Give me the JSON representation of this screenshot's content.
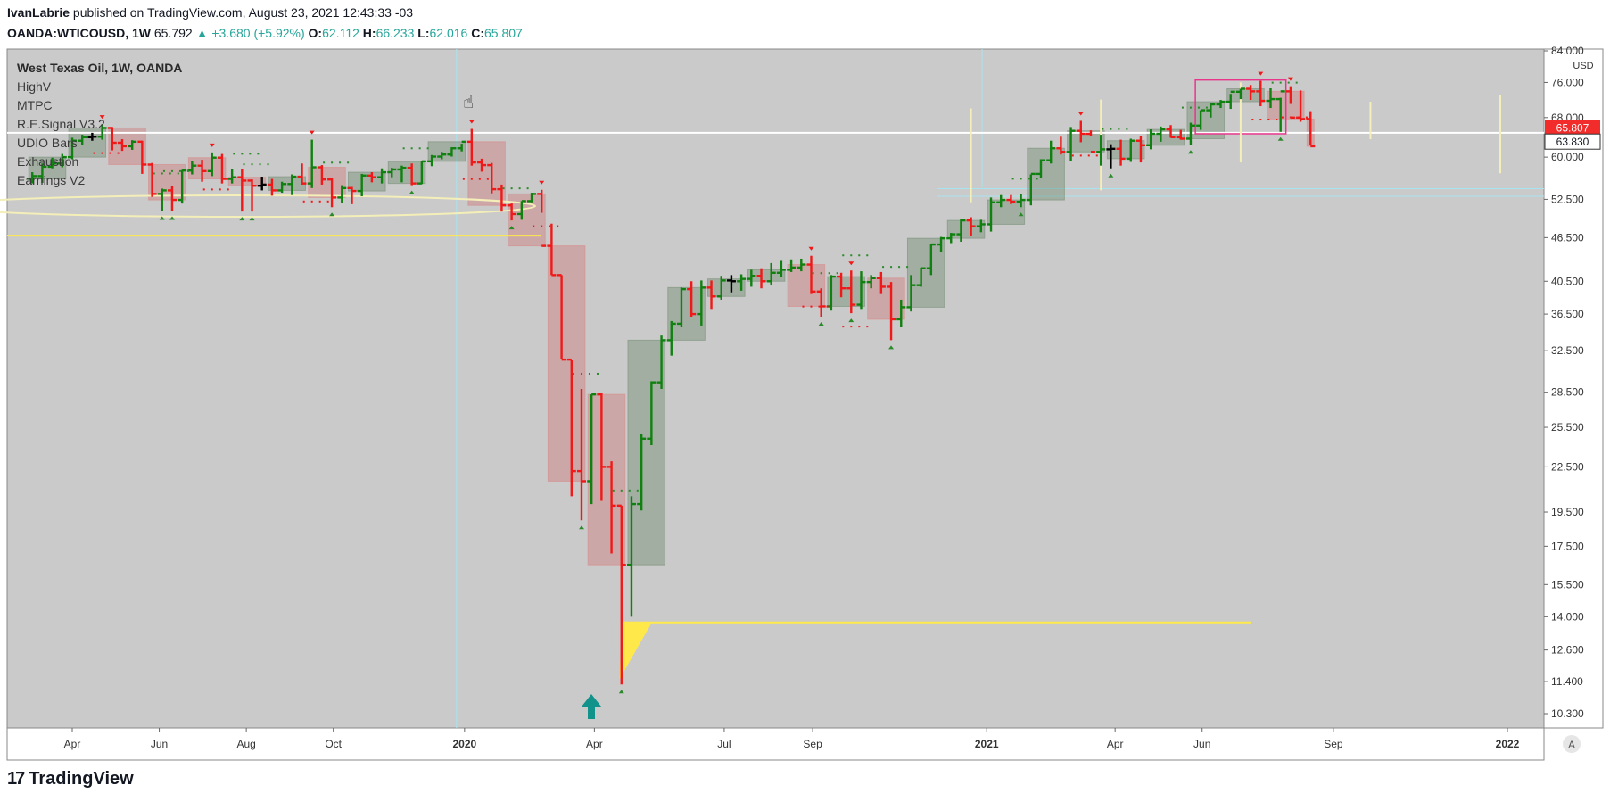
{
  "header": {
    "author": "IvanLabrie",
    "published_text": "published on TradingView.com, August 23, 2021 12:43:33 -03",
    "symbol": "OANDA:WTICOUSD, 1W",
    "last": "65.792",
    "change": "▲ +3.680 (+5.92%)",
    "o_label": "O:",
    "o": "62.112",
    "h_label": "H:",
    "h": "66.233",
    "l_label": "L:",
    "l": "62.016",
    "c_label": "C:",
    "c": "65.807"
  },
  "legend": {
    "title": "West Texas Oil, 1W, OANDA",
    "indicators": [
      "HighV",
      "MTPC",
      "R.E.Signal V3.2",
      "UDIO Bars",
      "Exhaustion",
      "Earnings V2"
    ]
  },
  "footer": {
    "brand": "TradingView",
    "logo_mark": "17"
  },
  "colors": {
    "background": "#cacaca",
    "up": "#108010",
    "down": "#f01818",
    "neutral": "#000000",
    "zone_up": "#5a7a5a",
    "zone_down": "#d06868",
    "highlight": "#ffe94a",
    "cross": "#a8e4f0"
  },
  "chart_data": {
    "type": "line",
    "style": "ohlc-bars",
    "x_axis_type": "date",
    "y_scale": "log",
    "currency_label": "USD",
    "ylim": [
      10.3,
      84.0
    ],
    "y_ticks": [
      "84.000",
      "76.000",
      "68.000",
      "60.000",
      "52.500",
      "46.500",
      "40.500",
      "36.500",
      "32.500",
      "28.500",
      "25.500",
      "22.500",
      "19.500",
      "17.500",
      "15.500",
      "14.000",
      "12.600",
      "11.400",
      "10.300"
    ],
    "x_ticks": [
      "Apr",
      "Jun",
      "Aug",
      "Oct",
      "2020",
      "Apr",
      "Jul",
      "Sep",
      "2021",
      "Apr",
      "Jun",
      "Sep",
      "2022"
    ],
    "x_tick_dates": [
      "2019-04-01",
      "2019-06-01",
      "2019-08-01",
      "2019-10-01",
      "2020-01-01",
      "2020-04-01",
      "2020-07-01",
      "2020-09-01",
      "2021-01-01",
      "2021-04-01",
      "2021-06-01",
      "2021-09-01",
      "2022-01-01"
    ],
    "last_price": "65.807",
    "marked_price": "63.830",
    "horizontal_levels": [
      {
        "price": 64.8,
        "color": "#ffffff"
      },
      {
        "price": 46.8,
        "color": "#ffe94a"
      },
      {
        "price": 13.75,
        "color": "#ffe94a",
        "from": "2020-04-20",
        "to": "2021-07-05"
      }
    ],
    "series": [
      {
        "x": [
          "2019-03-04",
          "2019-03-11",
          "2019-03-18",
          "2019-03-25",
          "2019-04-01",
          "2019-04-08",
          "2019-04-15",
          "2019-04-22",
          "2019-04-29",
          "2019-05-06",
          "2019-05-13",
          "2019-05-20",
          "2019-05-27",
          "2019-06-03",
          "2019-06-10",
          "2019-06-17",
          "2019-06-24",
          "2019-07-01",
          "2019-07-08",
          "2019-07-15",
          "2019-07-22",
          "2019-07-29",
          "2019-08-05",
          "2019-08-12",
          "2019-08-19",
          "2019-08-26",
          "2019-09-02",
          "2019-09-09",
          "2019-09-16",
          "2019-09-23",
          "2019-09-30",
          "2019-10-07",
          "2019-10-14",
          "2019-10-21",
          "2019-10-28",
          "2019-11-04",
          "2019-11-11",
          "2019-11-18",
          "2019-11-25",
          "2019-12-02",
          "2019-12-09",
          "2019-12-16",
          "2019-12-23",
          "2019-12-30",
          "2020-01-06",
          "2020-01-13",
          "2020-01-20",
          "2020-01-27",
          "2020-02-03",
          "2020-02-10",
          "2020-02-17",
          "2020-02-24",
          "2020-03-02",
          "2020-03-09",
          "2020-03-16",
          "2020-03-23",
          "2020-03-30",
          "2020-04-06",
          "2020-04-13",
          "2020-04-20",
          "2020-04-27",
          "2020-05-04",
          "2020-05-11",
          "2020-05-18",
          "2020-05-25",
          "2020-06-01",
          "2020-06-08",
          "2020-06-15",
          "2020-06-22",
          "2020-06-29",
          "2020-07-06",
          "2020-07-13",
          "2020-07-20",
          "2020-07-27",
          "2020-08-03",
          "2020-08-10",
          "2020-08-17",
          "2020-08-24",
          "2020-08-31",
          "2020-09-07",
          "2020-09-14",
          "2020-09-21",
          "2020-09-28",
          "2020-10-05",
          "2020-10-12",
          "2020-10-19",
          "2020-10-26",
          "2020-11-02",
          "2020-11-09",
          "2020-11-16",
          "2020-11-23",
          "2020-11-30",
          "2020-12-07",
          "2020-12-14",
          "2020-12-21",
          "2020-12-28",
          "2021-01-04",
          "2021-01-11",
          "2021-01-18",
          "2021-01-25",
          "2021-02-01",
          "2021-02-08",
          "2021-02-15",
          "2021-02-22",
          "2021-03-01",
          "2021-03-08",
          "2021-03-15",
          "2021-03-22",
          "2021-03-29",
          "2021-04-05",
          "2021-04-12",
          "2021-04-19",
          "2021-04-26",
          "2021-05-03",
          "2021-05-10",
          "2021-05-17",
          "2021-05-24",
          "2021-05-31",
          "2021-06-07",
          "2021-06-14",
          "2021-06-21",
          "2021-06-28",
          "2021-07-05",
          "2021-07-12",
          "2021-07-19",
          "2021-07-26",
          "2021-08-02",
          "2021-08-09",
          "2021-08-16"
        ],
        "o": [
          56.0,
          56.5,
          58.2,
          58.8,
          60.0,
          63.2,
          63.9,
          64.0,
          65.8,
          62.8,
          62.1,
          63.0,
          58.6,
          53.4,
          54.0,
          52.4,
          57.5,
          58.4,
          57.4,
          59.9,
          56.0,
          56.3,
          55.7,
          54.8,
          55.0,
          54.0,
          55.1,
          56.4,
          55.2,
          58.1,
          55.9,
          52.8,
          54.4,
          53.9,
          56.6,
          56.3,
          57.2,
          57.7,
          58.0,
          55.2,
          59.2,
          60.1,
          60.5,
          61.7,
          63.0,
          59.0,
          58.5,
          54.2,
          51.5,
          50.1,
          52.2,
          53.4,
          45.3,
          41.3,
          31.6,
          22.2,
          21.5,
          28.3,
          22.5,
          19.9,
          16.5,
          20.0,
          24.6,
          29.4,
          33.6,
          35.4,
          39.5,
          36.5,
          39.7,
          38.6,
          40.6,
          40.5,
          40.8,
          41.2,
          40.5,
          41.6,
          42.0,
          42.3,
          42.7,
          39.2,
          37.4,
          41.1,
          39.6,
          37.6,
          40.4,
          40.9,
          39.8,
          35.9,
          37.3,
          40.0,
          42.2,
          45.5,
          46.4,
          47.0,
          49.1,
          48.2,
          48.5,
          52.0,
          52.4,
          52.1,
          52.4,
          56.9,
          59.4,
          61.7,
          61.0,
          65.2,
          64.6,
          61.0,
          61.5,
          61.6,
          59.7,
          63.2,
          62.3,
          64.6,
          65.5,
          63.9,
          63.6,
          66.3,
          69.6,
          70.9,
          71.5,
          73.8,
          74.5,
          73.9,
          71.7,
          72.1,
          73.9,
          68.0,
          67.7,
          62.1
        ],
        "h": [
          57.2,
          58.8,
          59.9,
          60.6,
          63.8,
          64.4,
          64.8,
          66.6,
          66.0,
          63.5,
          63.3,
          63.2,
          58.9,
          54.3,
          54.7,
          57.6,
          59.3,
          59.5,
          60.9,
          60.6,
          57.8,
          57.8,
          55.9,
          56.4,
          56.0,
          55.5,
          56.8,
          58.8,
          63.4,
          58.5,
          56.2,
          54.9,
          54.6,
          56.9,
          57.2,
          57.9,
          58.0,
          58.4,
          58.8,
          59.3,
          60.4,
          61.0,
          61.9,
          62.6,
          65.6,
          59.7,
          58.9,
          55.0,
          51.8,
          52.2,
          53.6,
          54.1,
          48.6,
          41.3,
          31.6,
          28.8,
          28.3,
          28.4,
          22.9,
          19.9,
          20.5,
          25.0,
          29.5,
          34.1,
          35.7,
          39.7,
          40.5,
          40.6,
          40.6,
          41.2,
          41.3,
          41.4,
          42.0,
          42.2,
          42.9,
          43.2,
          43.4,
          43.5,
          43.9,
          39.6,
          41.3,
          41.6,
          41.9,
          41.8,
          41.3,
          41.7,
          40.4,
          38.2,
          41.3,
          42.3,
          45.6,
          46.6,
          47.2,
          49.3,
          49.6,
          49.2,
          52.8,
          53.2,
          53.2,
          53.4,
          56.8,
          59.6,
          63.2,
          64.0,
          66.0,
          67.3,
          65.3,
          64.4,
          62.5,
          63.4,
          63.6,
          64.2,
          65.5,
          66.1,
          66.4,
          65.4,
          66.9,
          69.6,
          71.3,
          71.9,
          73.3,
          74.5,
          75.4,
          76.4,
          74.6,
          72.4,
          75.1,
          74.1,
          69.4,
          67.9,
          66.2
        ],
        "l": [
          55.2,
          55.3,
          57.9,
          58.1,
          59.6,
          62.4,
          63.2,
          63.4,
          61.3,
          61.2,
          61.4,
          56.9,
          52.9,
          50.6,
          50.6,
          51.8,
          56.8,
          55.5,
          56.5,
          55.2,
          55.2,
          50.5,
          50.5,
          54.0,
          53.1,
          53.6,
          53.2,
          55.0,
          54.4,
          55.0,
          51.2,
          51.9,
          51.7,
          53.0,
          55.4,
          55.2,
          56.3,
          55.4,
          54.9,
          55.1,
          58.3,
          59.6,
          60.1,
          61.1,
          58.4,
          57.3,
          53.5,
          50.5,
          49.1,
          49.2,
          52.0,
          50.3,
          41.3,
          31.7,
          20.5,
          19.0,
          20.0,
          20.2,
          17.1,
          11.3,
          14.0,
          19.6,
          24.1,
          28.8,
          32.0,
          35.0,
          36.2,
          35.2,
          37.1,
          38.2,
          39.1,
          39.3,
          39.8,
          39.6,
          40.0,
          41.0,
          41.7,
          41.8,
          39.0,
          36.2,
          36.9,
          38.5,
          36.6,
          37.1,
          39.6,
          39.0,
          33.6,
          35.0,
          36.8,
          39.8,
          41.3,
          44.4,
          45.7,
          45.9,
          46.8,
          47.3,
          47.4,
          51.2,
          51.7,
          51.2,
          51.5,
          56.1,
          58.8,
          60.5,
          59.2,
          62.9,
          64.2,
          58.4,
          57.9,
          58.4,
          59.1,
          59.0,
          61.5,
          63.0,
          63.8,
          63.4,
          62.4,
          65.4,
          68.0,
          70.1,
          69.9,
          72.1,
          71.9,
          70.5,
          70.1,
          65.0,
          71.0,
          67.1,
          62.3,
          61.8,
          62.0
        ],
        "c": [
          56.5,
          58.2,
          58.8,
          60.0,
          63.2,
          63.9,
          64.0,
          65.8,
          62.8,
          62.1,
          63.0,
          58.6,
          53.4,
          54.0,
          52.4,
          57.5,
          58.4,
          57.4,
          59.9,
          56.0,
          56.3,
          55.7,
          54.8,
          55.0,
          54.0,
          55.1,
          56.4,
          55.2,
          58.1,
          55.9,
          52.8,
          54.4,
          53.9,
          56.6,
          56.3,
          57.2,
          57.7,
          58.0,
          55.2,
          59.2,
          60.1,
          60.5,
          61.7,
          63.0,
          59.0,
          58.5,
          54.2,
          51.5,
          50.1,
          52.2,
          53.4,
          45.3,
          41.3,
          31.6,
          22.2,
          21.5,
          28.3,
          22.5,
          19.9,
          16.5,
          20.0,
          24.6,
          29.4,
          33.6,
          35.4,
          39.5,
          36.5,
          39.7,
          38.6,
          40.6,
          40.5,
          40.8,
          41.2,
          40.5,
          41.6,
          42.0,
          42.3,
          42.7,
          39.2,
          37.4,
          41.1,
          39.6,
          37.6,
          40.4,
          40.9,
          39.8,
          35.9,
          37.3,
          40.0,
          42.2,
          45.5,
          46.4,
          47.0,
          49.1,
          48.2,
          48.5,
          52.0,
          52.4,
          52.1,
          52.4,
          56.9,
          59.4,
          61.7,
          61.0,
          65.2,
          64.6,
          61.0,
          61.5,
          61.6,
          59.7,
          63.2,
          62.3,
          64.6,
          65.5,
          63.9,
          63.6,
          66.3,
          69.6,
          70.9,
          71.5,
          73.8,
          74.5,
          73.9,
          71.7,
          72.1,
          73.9,
          68.0,
          67.7,
          62.1,
          65.8
        ]
      }
    ]
  }
}
